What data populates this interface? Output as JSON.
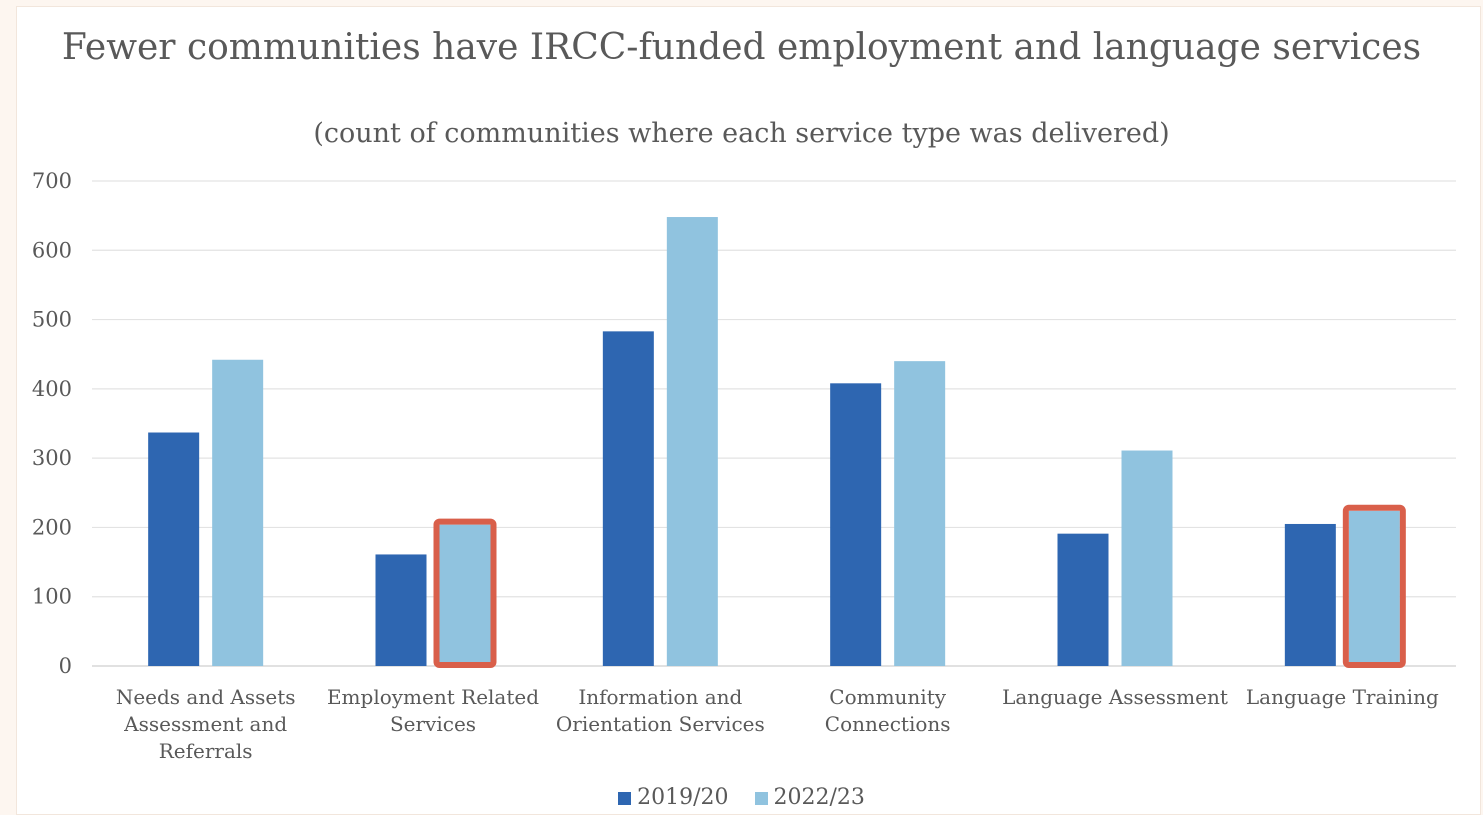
{
  "chart_data": {
    "type": "bar",
    "title": "Fewer communities have IRCC-funded employment and language services",
    "subtitle": "(count of communities where each service type was delivered)",
    "categories": [
      [
        "Needs and Assets",
        "Assessment and",
        "Referrals"
      ],
      [
        "Employment Related",
        "Services"
      ],
      [
        "Information and",
        "Orientation Services"
      ],
      [
        "Community",
        "Connections"
      ],
      [
        "Language Assessment"
      ],
      [
        "Language Training"
      ]
    ],
    "series": [
      {
        "name": "2019/20",
        "color": "#2e66b1",
        "values": [
          337,
          161,
          483,
          408,
          191,
          205
        ]
      },
      {
        "name": "2022/23",
        "color": "#90c3df",
        "values": [
          442,
          204,
          648,
          440,
          311,
          224
        ]
      }
    ],
    "highlighted": [
      {
        "series": 1,
        "category": 1
      },
      {
        "series": 1,
        "category": 5
      }
    ],
    "highlight_color": "#d95f4a",
    "y_ticks": [
      0,
      100,
      200,
      300,
      400,
      500,
      600,
      700
    ],
    "ylim": [
      0,
      700
    ],
    "grid": true,
    "legend_position": "bottom"
  }
}
